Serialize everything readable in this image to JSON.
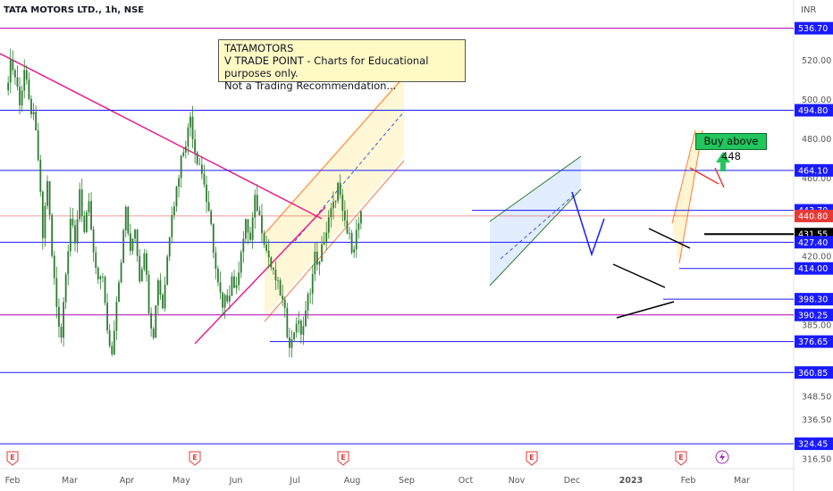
{
  "header": {
    "title": "TATA MOTORS LTD., 1h, NSE",
    "currency": "INR"
  },
  "note": {
    "line1": "TATAMOTORS",
    "line2": "V TRADE POINT - Charts for Educational purposes only.",
    "line3": "Not a Trading Recommendation..."
  },
  "callout": {
    "text": "Buy above 448"
  },
  "colors": {
    "candle": "#2e7d32",
    "level_line": "#1a1aff",
    "level_line_magenta": "#b000b0",
    "trendline": "#e91e8c",
    "channel_orange": "#ff9a3c",
    "channel_green": "#2e7d32",
    "accent_buy": "#22c55e",
    "last_price": "#e53935"
  },
  "chart_data": {
    "type": "candlestick",
    "ylim": [
      314,
      542
    ],
    "y_ticks": [
      {
        "label": "520.00",
        "v": 520
      },
      {
        "label": "500.00",
        "v": 500
      },
      {
        "label": "480.00",
        "v": 480
      },
      {
        "label": "460.00",
        "v": 460
      },
      {
        "label": "420.00",
        "v": 420
      },
      {
        "label": "385.00",
        "v": 385
      },
      {
        "label": "375.00",
        "v": 375
      },
      {
        "label": "348.50",
        "v": 348.5
      },
      {
        "label": "336.50",
        "v": 336.5
      },
      {
        "label": "316.50",
        "v": 316.5
      }
    ],
    "x_ticks": [
      "Feb",
      "Mar",
      "Apr",
      "May",
      "Jun",
      "Jul",
      "Aug",
      "Sep",
      "Oct",
      "Nov",
      "Dec",
      "2023",
      "Feb",
      "Mar"
    ],
    "levels": [
      {
        "label": "536.70",
        "v": 536.7,
        "color": "#b000b0",
        "label_bg": "#1a1aff"
      },
      {
        "label": "494.80",
        "v": 494.8,
        "color": "#1a1aff",
        "label_bg": "#1a1aff"
      },
      {
        "label": "464.10",
        "v": 464.1,
        "color": "#1a1aff",
        "label_bg": "#1a1aff"
      },
      {
        "label": "443.70",
        "v": 443.7,
        "color": "#1a1aff",
        "label_bg": "#1a1aff"
      },
      {
        "label": "440.80",
        "v": 440.8,
        "color": "#e53935",
        "label_bg": "#e53935"
      },
      {
        "label": "431.55",
        "v": 431.55,
        "color": "#000000",
        "label_bg": "#000000"
      },
      {
        "label": "427.40",
        "v": 427.4,
        "color": "#1a1aff",
        "label_bg": "#1a1aff"
      },
      {
        "label": "414.00",
        "v": 414.0,
        "color": "#1a1aff",
        "label_bg": "#1a1aff"
      },
      {
        "label": "398.30",
        "v": 398.3,
        "color": "#1a1aff",
        "label_bg": "#1a1aff"
      },
      {
        "label": "390.25",
        "v": 390.25,
        "color": "#b000b0",
        "label_bg": "#1a1aff"
      },
      {
        "label": "376.65",
        "v": 376.65,
        "color": "#1a1aff",
        "label_bg": "#1a1aff"
      },
      {
        "label": "360.85",
        "v": 360.85,
        "color": "#1a1aff",
        "label_bg": "#1a1aff"
      },
      {
        "label": "324.45",
        "v": 324.45,
        "color": "#1a1aff",
        "label_bg": "#1a1aff"
      }
    ],
    "price_path": [
      [
        0,
        505
      ],
      [
        2,
        520
      ],
      [
        4,
        512
      ],
      [
        6,
        500
      ],
      [
        8,
        515
      ],
      [
        10,
        498
      ],
      [
        12,
        490
      ],
      [
        14,
        470
      ],
      [
        16,
        430
      ],
      [
        18,
        460
      ],
      [
        20,
        420
      ],
      [
        22,
        395
      ],
      [
        24,
        380
      ],
      [
        26,
        415
      ],
      [
        28,
        440
      ],
      [
        30,
        425
      ],
      [
        32,
        455
      ],
      [
        34,
        432
      ],
      [
        36,
        445
      ],
      [
        38,
        420
      ],
      [
        40,
        405
      ],
      [
        42,
        412
      ],
      [
        44,
        380
      ],
      [
        46,
        370
      ],
      [
        48,
        400
      ],
      [
        50,
        420
      ],
      [
        52,
        445
      ],
      [
        54,
        420
      ],
      [
        56,
        436
      ],
      [
        58,
        410
      ],
      [
        60,
        425
      ],
      [
        62,
        395
      ],
      [
        64,
        382
      ],
      [
        66,
        410
      ],
      [
        68,
        395
      ],
      [
        70,
        420
      ],
      [
        72,
        445
      ],
      [
        74,
        455
      ],
      [
        76,
        470
      ],
      [
        78,
        480
      ],
      [
        80,
        492
      ],
      [
        82,
        475
      ],
      [
        84,
        468
      ],
      [
        86,
        458
      ],
      [
        88,
        440
      ],
      [
        90,
        425
      ],
      [
        92,
        405
      ],
      [
        94,
        392
      ],
      [
        96,
        400
      ],
      [
        98,
        410
      ],
      [
        100,
        402
      ],
      [
        102,
        425
      ],
      [
        104,
        436
      ],
      [
        106,
        428
      ],
      [
        108,
        448
      ],
      [
        110,
        440
      ],
      [
        112,
        430
      ],
      [
        114,
        420
      ],
      [
        116,
        410
      ],
      [
        118,
        404
      ],
      [
        120,
        396
      ],
      [
        122,
        382
      ],
      [
        124,
        376
      ],
      [
        126,
        388
      ],
      [
        128,
        382
      ],
      [
        130,
        390
      ],
      [
        132,
        405
      ],
      [
        134,
        420
      ],
      [
        136,
        415
      ],
      [
        138,
        430
      ],
      [
        140,
        438
      ],
      [
        142,
        445
      ],
      [
        144,
        456
      ],
      [
        146,
        440
      ],
      [
        148,
        432
      ],
      [
        150,
        426
      ],
      [
        152,
        432
      ],
      [
        154,
        440
      ]
    ]
  }
}
